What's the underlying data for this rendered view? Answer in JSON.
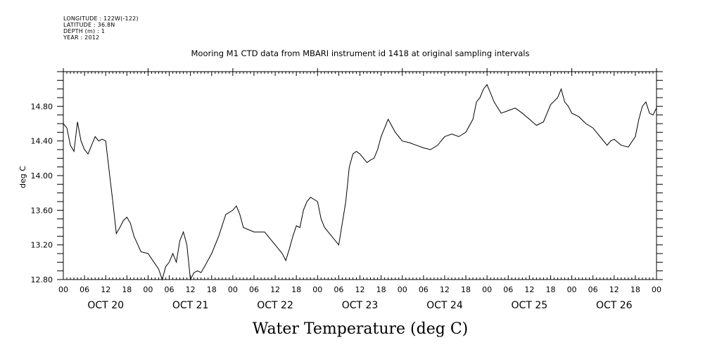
{
  "meta": {
    "longitude": "LONGITUDE : 122W(-122)",
    "latitude": "LATITUDE : 36.8N",
    "depth": "DEPTH (m) : 1",
    "year": "YEAR : 2012"
  },
  "chart_data": {
    "type": "line",
    "title": "Mooring M1 CTD data from MBARI instrument id 1418 at original sampling intervals",
    "xlabel": "Water Temperature (deg C)",
    "ylabel": "deg C",
    "ylim": [
      12.8,
      15.2
    ],
    "xlim_hours": [
      0,
      168
    ],
    "yticks": [
      "12.80",
      "13.20",
      "13.60",
      "14.00",
      "14.40",
      "14.80"
    ],
    "x_hour_tick_labels": [
      "00",
      "06",
      "12",
      "18",
      "00",
      "06",
      "12",
      "18",
      "00",
      "06",
      "12",
      "18",
      "00",
      "06",
      "12",
      "18",
      "00",
      "06",
      "12",
      "18",
      "00",
      "06",
      "12",
      "18",
      "00",
      "06",
      "12",
      "18",
      "00"
    ],
    "date_labels": [
      "OCT 20",
      "OCT 21",
      "OCT 22",
      "OCT 23",
      "OCT 24",
      "OCT 25",
      "OCT 26"
    ],
    "grid": false,
    "series": [
      {
        "x": [
          "Oct 20 00:00",
          "Oct 20 01:00",
          "Oct 20 02:00",
          "Oct 20 03:00",
          "Oct 20 04:00",
          "Oct 20 05:00",
          "Oct 20 06:00",
          "Oct 20 07:00",
          "Oct 20 08:00",
          "Oct 20 09:00",
          "Oct 20 10:00",
          "Oct 20 11:00",
          "Oct 20 12:00",
          "Oct 20 13:00",
          "Oct 20 14:00",
          "Oct 20 15:00",
          "Oct 20 16:00",
          "Oct 20 17:00",
          "Oct 20 18:00",
          "Oct 20 19:00",
          "Oct 20 20:00",
          "Oct 20 22:00",
          "Oct 21 00:00",
          "Oct 21 02:00",
          "Oct 21 03:00",
          "Oct 21 04:00",
          "Oct 21 05:00",
          "Oct 21 06:00",
          "Oct 21 07:00",
          "Oct 21 08:00",
          "Oct 21 09:00",
          "Oct 21 10:00",
          "Oct 21 11:00",
          "Oct 21 12:00",
          "Oct 21 13:00",
          "Oct 21 14:00",
          "Oct 21 15:00",
          "Oct 21 16:00",
          "Oct 21 18:00",
          "Oct 21 20:00",
          "Oct 21 22:00",
          "Oct 22 00:00",
          "Oct 22 01:00",
          "Oct 22 02:00",
          "Oct 22 03:00",
          "Oct 22 06:00",
          "Oct 22 09:00",
          "Oct 22 12:00",
          "Oct 22 14:00",
          "Oct 22 15:00",
          "Oct 22 16:00",
          "Oct 22 17:00",
          "Oct 22 18:00",
          "Oct 22 19:00",
          "Oct 22 20:00",
          "Oct 22 21:00",
          "Oct 22 22:00",
          "Oct 23 00:00",
          "Oct 23 01:00",
          "Oct 23 02:00",
          "Oct 23 04:00",
          "Oct 23 06:00",
          "Oct 23 08:00",
          "Oct 23 09:00",
          "Oct 23 10:00",
          "Oct 23 11:00",
          "Oct 23 12:00",
          "Oct 23 13:00",
          "Oct 23 14:00",
          "Oct 23 15:00",
          "Oct 23 16:00",
          "Oct 23 17:00",
          "Oct 23 18:00",
          "Oct 23 19:00",
          "Oct 23 20:00",
          "Oct 23 22:00",
          "Oct 23 23:00",
          "Oct 24 00:00",
          "Oct 24 02:00",
          "Oct 24 04:00",
          "Oct 24 06:00",
          "Oct 24 08:00",
          "Oct 24 10:00",
          "Oct 24 12:00",
          "Oct 24 14:00",
          "Oct 24 16:00",
          "Oct 24 18:00",
          "Oct 24 20:00",
          "Oct 24 21:00",
          "Oct 24 22:00",
          "Oct 24 23:00",
          "Oct 25 00:00",
          "Oct 25 01:00",
          "Oct 25 02:00",
          "Oct 25 04:00",
          "Oct 25 06:00",
          "Oct 25 08:00",
          "Oct 25 10:00",
          "Oct 25 12:00",
          "Oct 25 14:00",
          "Oct 25 16:00",
          "Oct 25 18:00",
          "Oct 25 20:00",
          "Oct 25 21:00",
          "Oct 25 22:00",
          "Oct 25 23:00",
          "Oct 26 00:00",
          "Oct 26 02:00",
          "Oct 26 04:00",
          "Oct 26 06:00",
          "Oct 26 08:00",
          "Oct 26 10:00",
          "Oct 26 11:00",
          "Oct 26 12:00",
          "Oct 26 14:00",
          "Oct 26 16:00",
          "Oct 26 18:00",
          "Oct 26 19:00",
          "Oct 26 20:00",
          "Oct 26 21:00",
          "Oct 26 22:00",
          "Oct 26 23:00",
          "Oct 26 23:59"
        ],
        "values": [
          14.6,
          14.55,
          14.35,
          14.28,
          14.62,
          14.4,
          14.3,
          14.25,
          14.35,
          14.45,
          14.4,
          14.42,
          14.4,
          14.05,
          13.7,
          13.33,
          13.4,
          13.48,
          13.52,
          13.45,
          13.3,
          13.12,
          13.1,
          12.98,
          12.92,
          12.8,
          12.95,
          13.0,
          13.1,
          13.0,
          13.25,
          13.35,
          13.2,
          12.8,
          12.88,
          12.9,
          12.88,
          12.95,
          13.1,
          13.3,
          13.55,
          13.6,
          13.65,
          13.55,
          13.4,
          13.35,
          13.35,
          13.2,
          13.1,
          13.02,
          13.15,
          13.3,
          13.42,
          13.4,
          13.6,
          13.7,
          13.75,
          13.7,
          13.5,
          13.4,
          13.3,
          13.2,
          13.7,
          14.1,
          14.25,
          14.28,
          14.25,
          14.2,
          14.15,
          14.18,
          14.2,
          14.3,
          14.45,
          14.55,
          14.65,
          14.5,
          14.45,
          14.4,
          14.38,
          14.35,
          14.32,
          14.3,
          14.35,
          14.45,
          14.48,
          14.45,
          14.5,
          14.65,
          14.85,
          14.9,
          15.0,
          15.05,
          14.95,
          14.85,
          14.72,
          14.75,
          14.78,
          14.72,
          14.65,
          14.58,
          14.62,
          14.82,
          14.9,
          15.0,
          14.85,
          14.8,
          14.72,
          14.68,
          14.6,
          14.55,
          14.45,
          14.35,
          14.4,
          14.42,
          14.35,
          14.33,
          14.45,
          14.65,
          14.8,
          14.85,
          14.72,
          14.7,
          14.78
        ]
      }
    ]
  }
}
